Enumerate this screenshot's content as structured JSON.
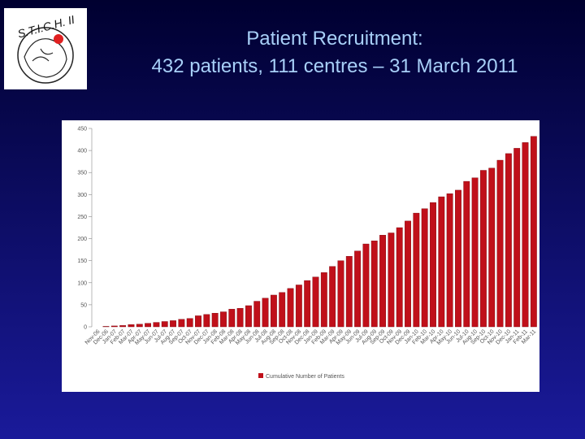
{
  "logo": {
    "text": "S.T.I.C.H. II"
  },
  "chart_data": {
    "type": "bar",
    "title": "Patient Recruitment:",
    "subtitle": "432 patients, 111 centres – 31 March 2011",
    "categories": [
      "Nov-06",
      "Dec-06",
      "Jan-07",
      "Feb-07",
      "Mar-07",
      "Apr-07",
      "May-07",
      "Jun-07",
      "Jul-07",
      "Aug-07",
      "Sep-07",
      "Oct-07",
      "Nov-07",
      "Dec-07",
      "Jan-08",
      "Feb-08",
      "Mar-08",
      "Apr-08",
      "May-08",
      "Jun-08",
      "Jul-08",
      "Aug-08",
      "Sep-08",
      "Oct-08",
      "Nov-08",
      "Dec-08",
      "Jan-09",
      "Feb-09",
      "Mar-09",
      "Apr-09",
      "May-09",
      "Jun-09",
      "Jul-09",
      "Aug-09",
      "Sep-09",
      "Oct-09",
      "Nov-09",
      "Dec-09",
      "Jan-10",
      "Feb-10",
      "Mar-10",
      "Apr-10",
      "May-10",
      "Jun-10",
      "Jul-10",
      "Aug-10",
      "Sep-10",
      "Oct-10",
      "Nov-10",
      "Dec-10",
      "Jan-11",
      "Feb-11",
      "Mar-11"
    ],
    "series": [
      {
        "name": "Cumulative Number of Patients",
        "color": "#c0101a",
        "values": [
          0,
          1,
          2,
          3,
          5,
          6,
          8,
          10,
          12,
          14,
          17,
          19,
          25,
          28,
          31,
          34,
          40,
          42,
          48,
          58,
          65,
          72,
          78,
          87,
          95,
          105,
          113,
          123,
          137,
          150,
          160,
          172,
          188,
          195,
          208,
          213,
          225,
          240,
          258,
          268,
          282,
          295,
          302,
          310,
          330,
          338,
          355,
          360,
          378,
          393,
          405,
          418,
          432
        ]
      }
    ],
    "ylim": [
      0,
      450
    ],
    "yticks": [
      0,
      50,
      100,
      150,
      200,
      250,
      300,
      350,
      400,
      450
    ],
    "legend": "bottom"
  }
}
